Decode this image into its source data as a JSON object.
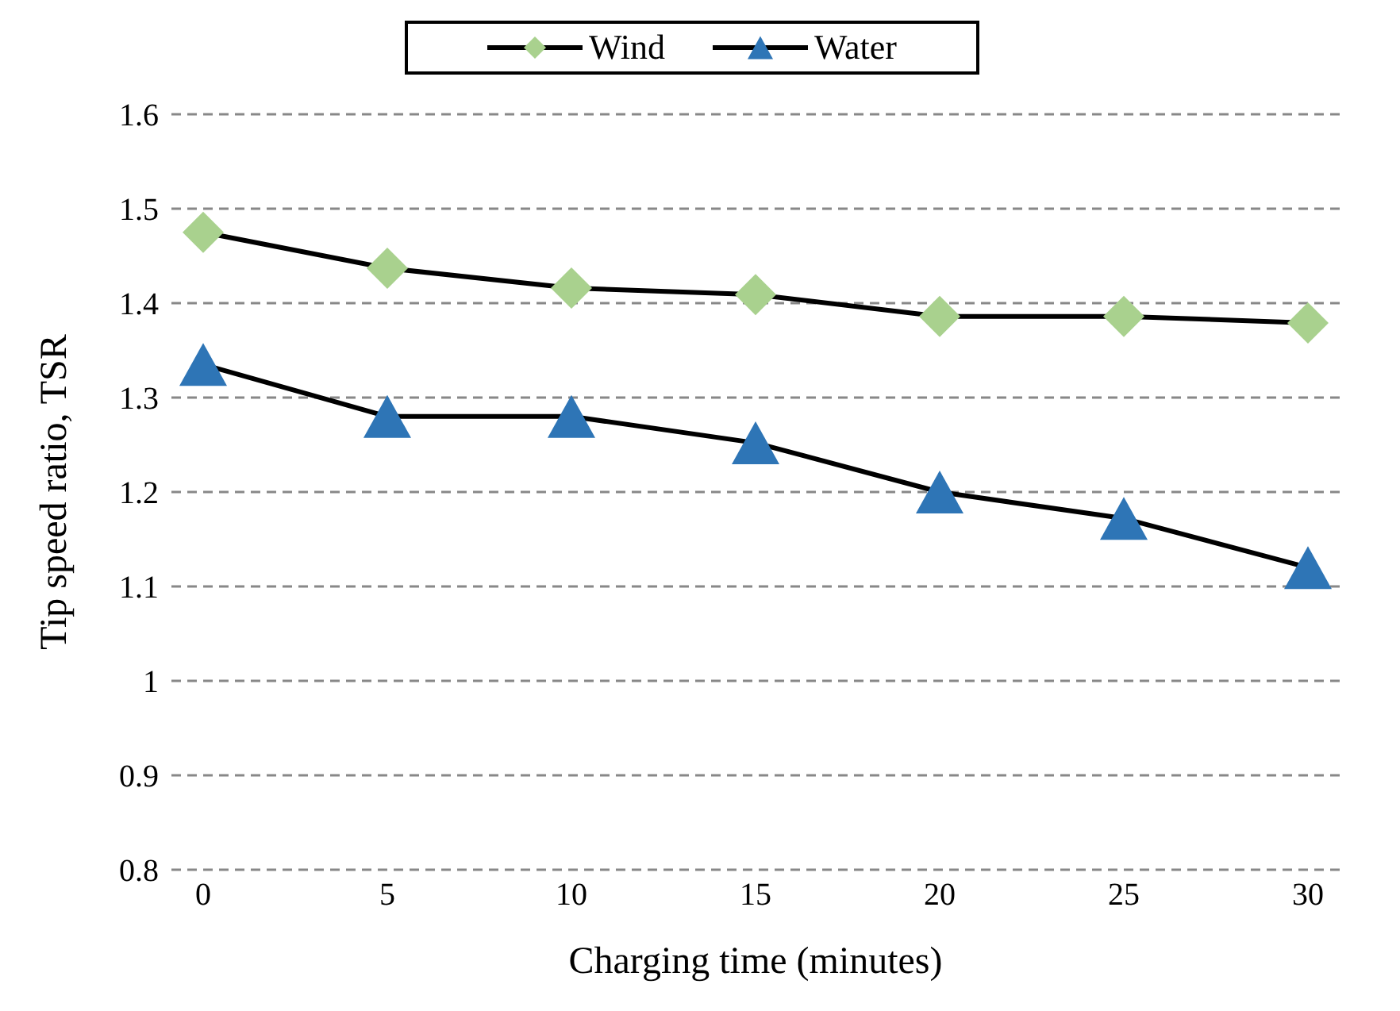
{
  "chart_data": {
    "type": "line",
    "xlabel": "Charging time (minutes)",
    "ylabel": "Tip speed ratio, TSR",
    "categories": [
      "0",
      "5",
      "10",
      "15",
      "20",
      "25",
      "30"
    ],
    "series": [
      {
        "name": "Wind",
        "color": "#a9d18e",
        "marker": "diamond",
        "values": [
          1.475,
          1.437,
          1.416,
          1.409,
          1.386,
          1.386,
          1.379
        ]
      },
      {
        "name": "Water",
        "color": "#2e75b6",
        "marker": "triangle",
        "values": [
          1.335,
          1.28,
          1.28,
          1.252,
          1.2,
          1.172,
          1.12
        ]
      }
    ],
    "ylim": [
      0.8,
      1.6
    ],
    "yticks": [
      0.8,
      0.9,
      1,
      1.1,
      1.2,
      1.3,
      1.4,
      1.5,
      1.6
    ],
    "grid": "y",
    "legend": "top"
  }
}
